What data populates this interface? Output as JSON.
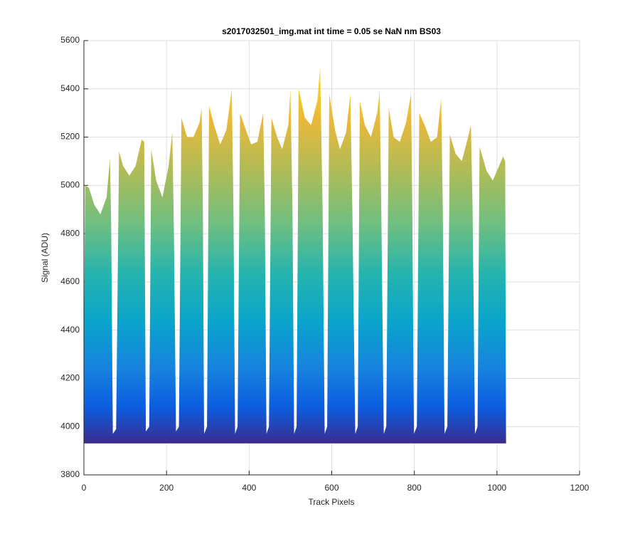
{
  "chart_data": {
    "type": "area",
    "title": "s2017032501_img.mat int time = 0.05 se  NaN nm BS03",
    "x_label": "Track Pixels",
    "y_label": "Signal (ADU)",
    "xlim": [
      0,
      1200
    ],
    "xticks": [
      0,
      200,
      400,
      600,
      800,
      1000,
      1200
    ],
    "ylim": [
      3800,
      5600
    ],
    "yticks": [
      3800,
      4000,
      4200,
      4400,
      4600,
      4800,
      5000,
      5200,
      5400,
      5600
    ],
    "grid": true,
    "floor": 3935,
    "x": [
      0,
      3,
      12,
      25,
      40,
      55,
      63,
      66,
      70,
      78,
      85,
      95,
      110,
      125,
      140,
      146,
      150,
      158,
      163,
      175,
      190,
      205,
      214,
      218,
      223,
      230,
      236,
      250,
      265,
      280,
      285,
      288,
      291,
      298,
      303,
      315,
      330,
      345,
      358,
      362,
      366,
      372,
      378,
      390,
      405,
      420,
      434,
      438,
      442,
      448,
      454,
      468,
      480,
      495,
      500,
      505,
      509,
      515,
      520,
      535,
      550,
      565,
      572,
      578,
      583,
      589,
      594,
      608,
      620,
      635,
      645,
      650,
      657,
      663,
      668,
      680,
      695,
      710,
      716,
      720,
      726,
      732,
      738,
      750,
      765,
      780,
      792,
      795,
      799,
      806,
      812,
      825,
      840,
      855,
      865,
      869,
      873,
      880,
      886,
      900,
      915,
      930,
      937,
      941,
      947,
      953,
      958,
      975,
      990,
      1005,
      1015,
      1020,
      1022
    ],
    "values": [
      4300,
      5000,
      4990,
      4920,
      4880,
      4950,
      5110,
      4850,
      3970,
      3990,
      5140,
      5080,
      5040,
      5080,
      5190,
      5180,
      3980,
      4000,
      5150,
      5020,
      4950,
      5080,
      5220,
      4800,
      3980,
      4000,
      5280,
      5200,
      5200,
      5260,
      5320,
      4900,
      3970,
      4000,
      5330,
      5250,
      5170,
      5230,
      5400,
      4900,
      3970,
      4000,
      5300,
      5240,
      5170,
      5180,
      5300,
      4900,
      3970,
      4000,
      5280,
      5200,
      5150,
      5250,
      5400,
      4900,
      3970,
      4000,
      5400,
      5280,
      5250,
      5350,
      5490,
      4900,
      3970,
      4000,
      5380,
      5230,
      5150,
      5220,
      5380,
      4900,
      3970,
      4000,
      5350,
      5250,
      5200,
      5300,
      5390,
      4900,
      3970,
      4000,
      5320,
      5200,
      5180,
      5260,
      5380,
      4900,
      3970,
      4000,
      5300,
      5250,
      5180,
      5200,
      5360,
      4900,
      3970,
      4000,
      5210,
      5130,
      5100,
      5200,
      5250,
      4900,
      3970,
      4000,
      5160,
      5060,
      5020,
      5080,
      5120,
      5100,
      3950
    ]
  }
}
